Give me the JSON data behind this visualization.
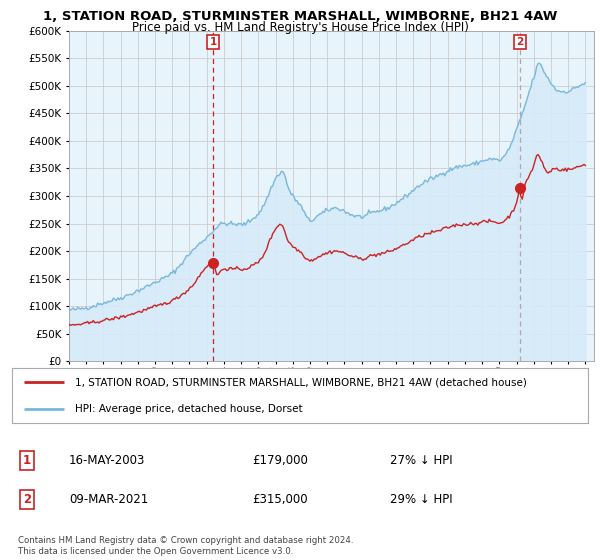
{
  "title": "1, STATION ROAD, STURMINSTER MARSHALL, WIMBORNE, BH21 4AW",
  "subtitle": "Price paid vs. HM Land Registry's House Price Index (HPI)",
  "ylim": [
    0,
    600000
  ],
  "yticks": [
    0,
    50000,
    100000,
    150000,
    200000,
    250000,
    300000,
    350000,
    400000,
    450000,
    500000,
    550000,
    600000
  ],
  "xlim_start": 1995.0,
  "xlim_end": 2025.5,
  "hpi_color": "#7ab8d9",
  "hpi_fill_color": "#d6eaf8",
  "price_color": "#cc2222",
  "sale1_x": 2003.37,
  "sale1_y": 179000,
  "sale1_label": "1",
  "sale1_line_style": "dashed_red",
  "sale2_x": 2021.19,
  "sale2_y": 315000,
  "sale2_label": "2",
  "sale2_line_style": "dashed_gray",
  "legend_entry1": "1, STATION ROAD, STURMINSTER MARSHALL, WIMBORNE, BH21 4AW (detached house)",
  "legend_entry2": "HPI: Average price, detached house, Dorset",
  "table_row1_num": "1",
  "table_row1_date": "16-MAY-2003",
  "table_row1_price": "£179,000",
  "table_row1_hpi": "27% ↓ HPI",
  "table_row2_num": "2",
  "table_row2_date": "09-MAR-2021",
  "table_row2_price": "£315,000",
  "table_row2_hpi": "29% ↓ HPI",
  "footer": "Contains HM Land Registry data © Crown copyright and database right 2024.\nThis data is licensed under the Open Government Licence v3.0.",
  "background_color": "#ffffff",
  "grid_color": "#cccccc"
}
